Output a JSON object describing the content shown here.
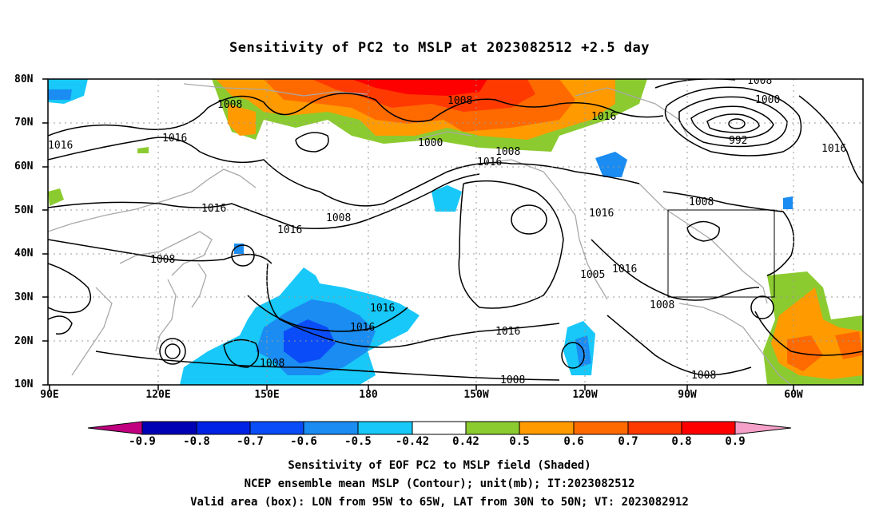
{
  "title": "Sensitivity of PC2 to MSLP at 2023082512 +2.5 day",
  "y_ticks": [
    "80N",
    "70N",
    "60N",
    "50N",
    "40N",
    "30N",
    "20N",
    "10N"
  ],
  "x_ticks": [
    "90E",
    "120E",
    "150E",
    "180",
    "150W",
    "120W",
    "90W",
    "60W"
  ],
  "colorbar": {
    "labels": [
      "-0.9",
      "-0.8",
      "-0.7",
      "-0.6",
      "-0.5",
      "-0.42",
      "0.42",
      "0.5",
      "0.6",
      "0.7",
      "0.8",
      "0.9"
    ],
    "colors": [
      "#c0007f",
      "#0000b4",
      "#0022e6",
      "#0a4cf7",
      "#1a8cf2",
      "#18c8f8",
      "#ffffff",
      "#8ccb30",
      "#ff9b00",
      "#ff6a00",
      "#ff3a00",
      "#ff0000",
      "#f5a0c8"
    ]
  },
  "contour_labels": [
    "1008",
    "1016",
    "1000",
    "992",
    "1005"
  ],
  "valid_box": {
    "lon_min": "95W",
    "lon_max": "65W",
    "lat_min": "30N",
    "lat_max": "50N"
  },
  "footer": {
    "line1": "Sensitivity of EOF PC2 to MSLP field (Shaded)",
    "line2": "NCEP ensemble mean MSLP (Contour); unit(mb); IT:2023082512",
    "line3": "Valid area (box): LON from 95W to 65W, LAT from 30N to 50N; VT: 2023082912"
  }
}
